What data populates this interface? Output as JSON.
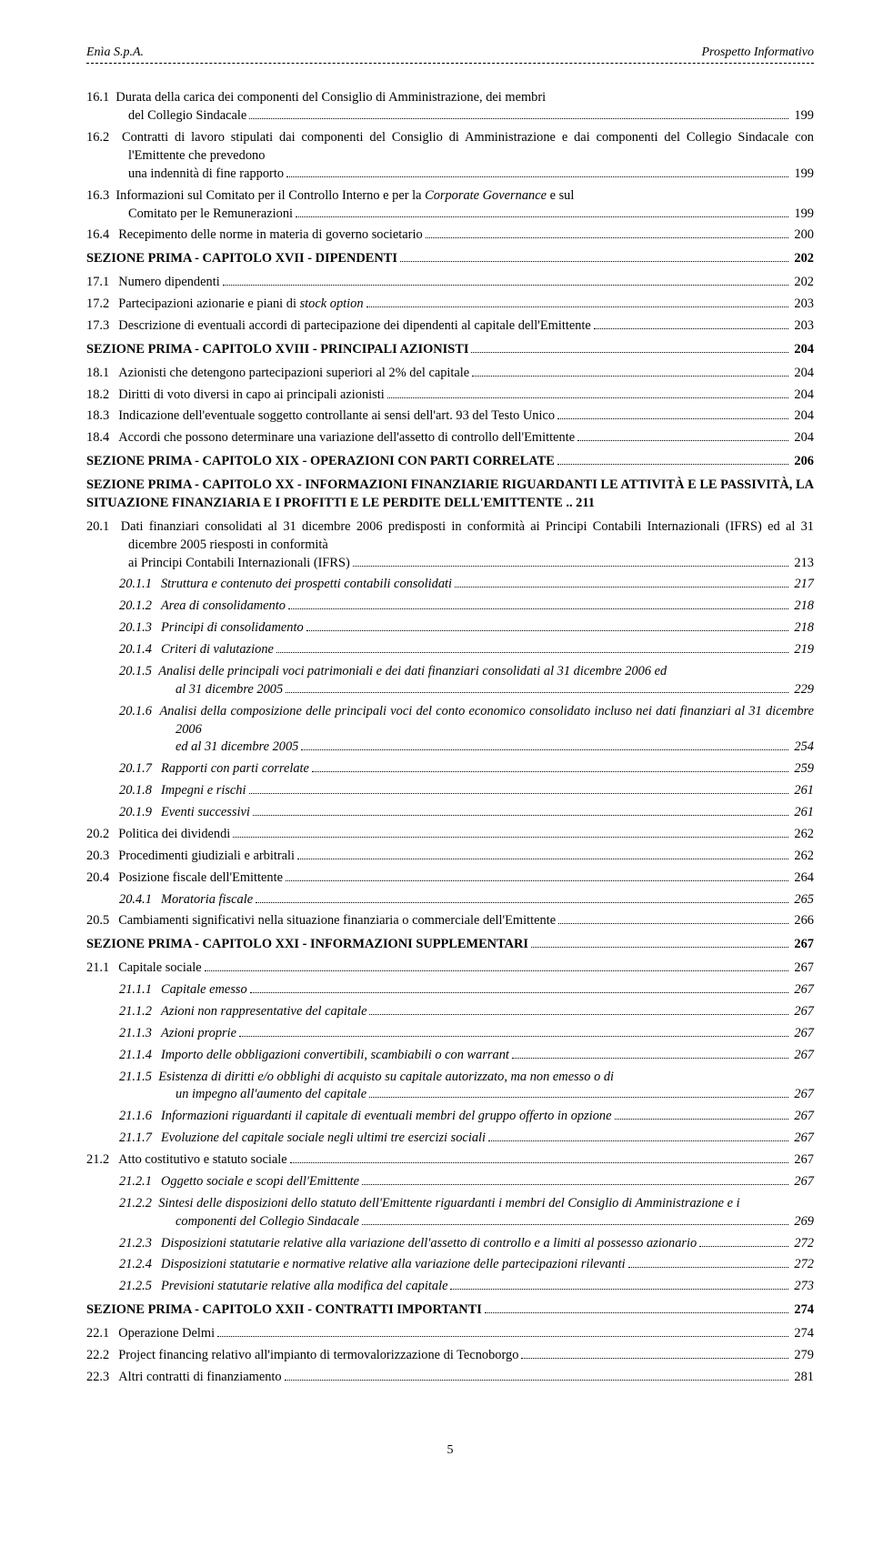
{
  "header": {
    "left": "Enìa S.p.A.",
    "right": "Prospetto Informativo"
  },
  "entries": [
    {
      "n": "16.1",
      "t": "Durata della carica dei componenti del Consiglio di Amministrazione, dei membri del Collegio Sindacale",
      "p": "199",
      "cls": "ind1",
      "wrap": true
    },
    {
      "n": "16.2",
      "t": "Contratti di lavoro stipulati dai componenti del Consiglio di Amministrazione e dai componenti del Collegio Sindacale con l'Emittente che prevedono una indennità di fine rapporto",
      "p": "199",
      "cls": "ind1",
      "wrap": true
    },
    {
      "n": "16.3",
      "t": "Informazioni sul Comitato per il Controllo Interno e per la <i>Corporate Governance</i> e sul Comitato per le Remunerazioni",
      "p": "199",
      "cls": "ind1",
      "wrap": true,
      "html": true
    },
    {
      "n": "16.4",
      "t": "Recepimento delle norme in materia di governo societario",
      "p": "200",
      "cls": "ind1"
    },
    {
      "n": "",
      "t": "SEZIONE PRIMA - CAPITOLO XVII - DIPENDENTI",
      "p": "202",
      "cls": "sec"
    },
    {
      "n": "17.1",
      "t": "Numero dipendenti",
      "p": "202",
      "cls": "ind1"
    },
    {
      "n": "17.2",
      "t": "Partecipazioni azionarie e piani di <i>stock option</i>",
      "p": "203",
      "cls": "ind1",
      "html": true
    },
    {
      "n": "17.3",
      "t": "Descrizione di eventuali accordi di partecipazione dei dipendenti al capitale dell'Emittente",
      "p": "203",
      "cls": "ind1"
    },
    {
      "n": "",
      "t": "SEZIONE PRIMA - CAPITOLO XVIII - PRINCIPALI AZIONISTI",
      "p": "204",
      "cls": "sec"
    },
    {
      "n": "18.1",
      "t": "Azionisti che detengono partecipazioni superiori al 2% del capitale",
      "p": "204",
      "cls": "ind1"
    },
    {
      "n": "18.2",
      "t": "Diritti di voto diversi in capo ai principali azionisti",
      "p": "204",
      "cls": "ind1"
    },
    {
      "n": "18.3",
      "t": "Indicazione dell'eventuale soggetto controllante ai sensi dell'art. 93 del Testo Unico",
      "p": "204",
      "cls": "ind1"
    },
    {
      "n": "18.4",
      "t": "Accordi che possono determinare una variazione dell'assetto di controllo dell'Emittente",
      "p": "204",
      "cls": "ind1"
    },
    {
      "n": "",
      "t": "SEZIONE PRIMA - CAPITOLO XIX - OPERAZIONI CON PARTI CORRELATE",
      "p": "206",
      "cls": "sec"
    },
    {
      "n": "",
      "t": "SEZIONE PRIMA - CAPITOLO XX - INFORMAZIONI FINANZIARIE RIGUARDANTI LE ATTIVITÀ E LE PASSIVITÀ, LA SITUAZIONE FINANZIARIA E I PROFITTI E LE PERDITE DELL'EMITTENTE",
      "p": "211",
      "cls": "sec",
      "nodots": true
    },
    {
      "n": "20.1",
      "t": "Dati finanziari consolidati al 31 dicembre 2006 predisposti in conformità ai Principi Contabili Internazionali (IFRS) ed al 31 dicembre 2005 riesposti in conformità ai Principi Contabili Internazionali (IFRS)",
      "p": "213",
      "cls": "ind1",
      "wrap": true
    },
    {
      "n": "20.1.1",
      "t": "Struttura e contenuto dei prospetti contabili consolidati",
      "p": "217",
      "cls": "ind2 italic"
    },
    {
      "n": "20.1.2",
      "t": "Area di consolidamento",
      "p": "218",
      "cls": "ind2 italic"
    },
    {
      "n": "20.1.3",
      "t": "Principi di consolidamento",
      "p": "218",
      "cls": "ind2 italic"
    },
    {
      "n": "20.1.4",
      "t": "Criteri di valutazione",
      "p": "219",
      "cls": "ind2 italic"
    },
    {
      "n": "20.1.5",
      "t": "Analisi delle principali voci patrimoniali e dei dati finanziari consolidati al 31 dicembre 2006 ed al 31 dicembre 2005",
      "p": "229",
      "cls": "ind2 italic",
      "wrap": true
    },
    {
      "n": "20.1.6",
      "t": "Analisi della composizione delle principali voci del conto economico consolidato incluso nei dati finanziari al 31 dicembre 2006 ed al 31 dicembre 2005",
      "p": "254",
      "cls": "ind2 italic",
      "wrap": true
    },
    {
      "n": "20.1.7",
      "t": "Rapporti con parti correlate",
      "p": "259",
      "cls": "ind2 italic"
    },
    {
      "n": "20.1.8",
      "t": "Impegni e rischi",
      "p": "261",
      "cls": "ind2 italic"
    },
    {
      "n": "20.1.9",
      "t": "Eventi successivi",
      "p": "261",
      "cls": "ind2 italic"
    },
    {
      "n": "20.2",
      "t": "Politica dei dividendi",
      "p": "262",
      "cls": "ind1"
    },
    {
      "n": "20.3",
      "t": "Procedimenti giudiziali e arbitrali",
      "p": "262",
      "cls": "ind1"
    },
    {
      "n": "20.4",
      "t": "Posizione fiscale dell'Emittente",
      "p": "264",
      "cls": "ind1"
    },
    {
      "n": "20.4.1",
      "t": "Moratoria fiscale",
      "p": "265",
      "cls": "ind2 italic"
    },
    {
      "n": "20.5",
      "t": "Cambiamenti significativi nella situazione finanziaria o commerciale dell'Emittente",
      "p": "266",
      "cls": "ind1"
    },
    {
      "n": "",
      "t": "SEZIONE PRIMA - CAPITOLO XXI - INFORMAZIONI SUPPLEMENTARI",
      "p": "267",
      "cls": "sec"
    },
    {
      "n": "21.1",
      "t": "Capitale sociale",
      "p": "267",
      "cls": "ind1"
    },
    {
      "n": "21.1.1",
      "t": "Capitale emesso",
      "p": "267",
      "cls": "ind2 italic"
    },
    {
      "n": "21.1.2",
      "t": "Azioni non rappresentative del capitale",
      "p": "267",
      "cls": "ind2 italic"
    },
    {
      "n": "21.1.3",
      "t": "Azioni proprie",
      "p": "267",
      "cls": "ind2 italic"
    },
    {
      "n": "21.1.4",
      "t": "Importo delle obbligazioni convertibili, scambiabili o con warrant",
      "p": "267",
      "cls": "ind2 italic"
    },
    {
      "n": "21.1.5",
      "t": "Esistenza di diritti e/o obblighi di acquisto su capitale autorizzato, ma non emesso o di un impegno all'aumento del capitale",
      "p": "267",
      "cls": "ind2 italic",
      "wrap": true
    },
    {
      "n": "21.1.6",
      "t": "Informazioni riguardanti il capitale di eventuali membri del gruppo offerto in opzione",
      "p": "267",
      "cls": "ind2 italic"
    },
    {
      "n": "21.1.7",
      "t": "Evoluzione del capitale sociale negli ultimi tre esercizi sociali",
      "p": "267",
      "cls": "ind2 italic"
    },
    {
      "n": "21.2",
      "t": "Atto costitutivo e statuto sociale",
      "p": "267",
      "cls": "ind1"
    },
    {
      "n": "21.2.1",
      "t": "Oggetto sociale e scopi dell'Emittente",
      "p": "267",
      "cls": "ind2 italic"
    },
    {
      "n": "21.2.2",
      "t": "Sintesi delle disposizioni dello statuto dell'Emittente riguardanti i membri del Consiglio di Amministrazione e i componenti del Collegio Sindacale",
      "p": "269",
      "cls": "ind2 italic",
      "wrap": true
    },
    {
      "n": "21.2.3",
      "t": "Disposizioni statutarie relative alla variazione dell'assetto di controllo e a limiti al possesso azionario",
      "p": "272",
      "cls": "ind2 italic"
    },
    {
      "n": "21.2.4",
      "t": "Disposizioni statutarie e normative relative alla variazione delle partecipazioni rilevanti",
      "p": "272",
      "cls": "ind2 italic"
    },
    {
      "n": "21.2.5",
      "t": "Previsioni statutarie relative alla modifica del capitale",
      "p": "273",
      "cls": "ind2 italic"
    },
    {
      "n": "",
      "t": "SEZIONE PRIMA - CAPITOLO XXII - CONTRATTI IMPORTANTI",
      "p": "274",
      "cls": "sec"
    },
    {
      "n": "22.1",
      "t": "Operazione Delmi",
      "p": "274",
      "cls": "ind1"
    },
    {
      "n": "22.2",
      "t": "Project financing relativo all'impianto di termovalorizzazione di Tecnoborgo",
      "p": "279",
      "cls": "ind1"
    },
    {
      "n": "22.3",
      "t": "Altri contratti di finanziamento",
      "p": "281",
      "cls": "ind1"
    }
  ],
  "footer": {
    "page": "5"
  }
}
